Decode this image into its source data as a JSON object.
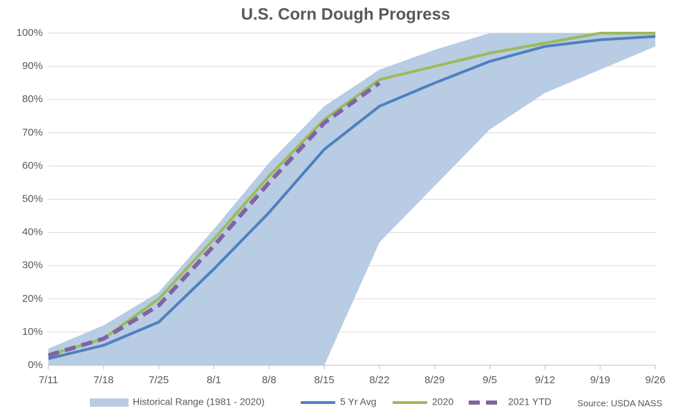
{
  "chart_data": {
    "type": "line",
    "title": "U.S. Corn Dough Progress",
    "source": "Source: USDA NASS",
    "categories": [
      "7/11",
      "7/18",
      "7/25",
      "8/1",
      "8/8",
      "8/15",
      "8/22",
      "8/29",
      "9/5",
      "9/12",
      "9/19",
      "9/26"
    ],
    "range": {
      "name": "Historical Range (1981 - 2020)",
      "color": "#b8cce4",
      "low": [
        0,
        0,
        0,
        0,
        0,
        0,
        37,
        54,
        71,
        82,
        89,
        96
      ],
      "high": [
        5,
        12,
        22,
        41,
        61,
        78,
        89,
        95,
        100,
        100,
        100,
        100
      ]
    },
    "series": [
      {
        "name": "5 Yr Avg",
        "color": "#4f81bd",
        "values": [
          2,
          6,
          13,
          29,
          46,
          65,
          78,
          85,
          91.5,
          96,
          98,
          99
        ]
      },
      {
        "name": "2020",
        "color": "#9bbb59",
        "values": [
          3,
          8,
          20,
          38,
          57,
          74,
          86,
          90,
          94,
          97,
          100,
          100
        ]
      },
      {
        "name": "2021 YTD",
        "color": "#8064a2",
        "dashed": true,
        "values": [
          3,
          8,
          18,
          36,
          55,
          73,
          85,
          null,
          null,
          null,
          null,
          null
        ]
      }
    ],
    "ylim": [
      0,
      100
    ],
    "yticks": [
      {
        "value": 0,
        "label": "0%"
      },
      {
        "value": 10,
        "label": "10%"
      },
      {
        "value": 20,
        "label": "20%"
      },
      {
        "value": 30,
        "label": "30%"
      },
      {
        "value": 40,
        "label": "40%"
      },
      {
        "value": 50,
        "label": "50%"
      },
      {
        "value": 60,
        "label": "60%"
      },
      {
        "value": 70,
        "label": "70%"
      },
      {
        "value": 80,
        "label": "80%"
      },
      {
        "value": 90,
        "label": "90%"
      },
      {
        "value": 100,
        "label": "100%"
      }
    ],
    "grid": true,
    "legend": "bottom"
  }
}
